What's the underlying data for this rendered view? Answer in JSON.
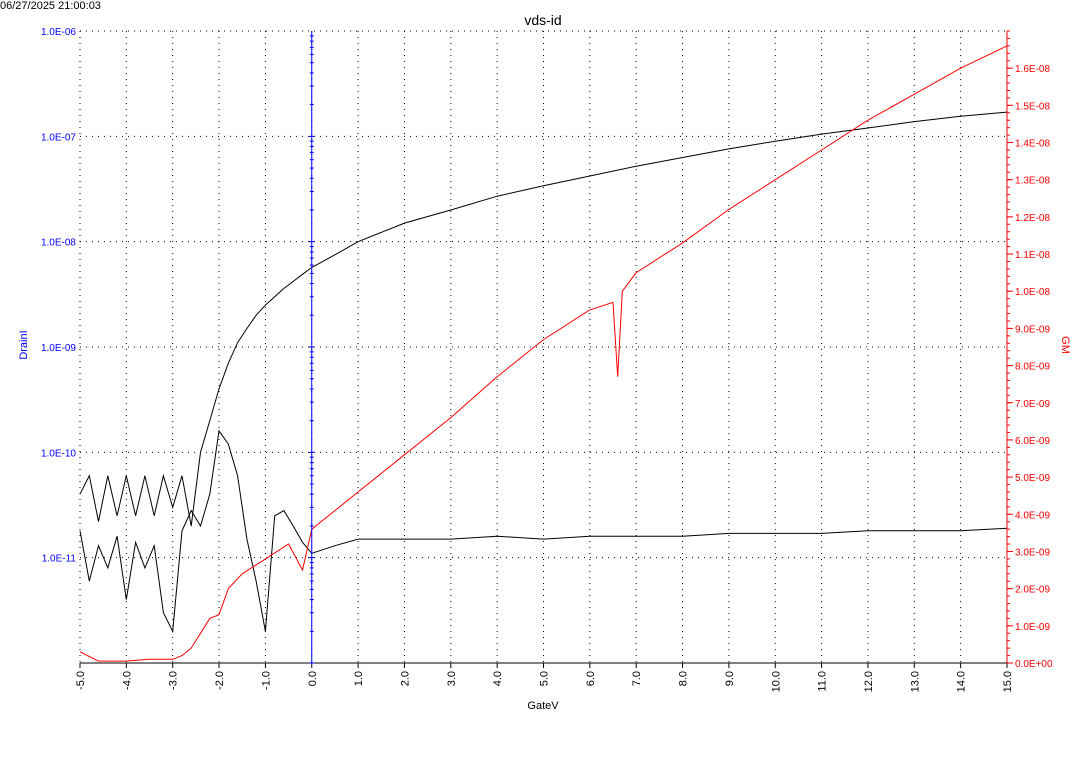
{
  "timestamp": "06/27/2025 21:00:03",
  "chart_data": {
    "type": "line",
    "title": "vds-id",
    "xlabel": "GateV",
    "ylabel_left": "DrainI",
    "ylabel_right": "GM",
    "grid": true,
    "xlim": [
      -5.0,
      15.0
    ],
    "x_ticks": [
      "-5.0",
      "-4.0",
      "-3.0",
      "-2.0",
      "-1.0",
      "0.0",
      "1.0",
      "2.0",
      "3.0",
      "4.0",
      "5.0",
      "6.0",
      "7.0",
      "8.0",
      "9.0",
      "10.0",
      "11.0",
      "12.0",
      "13.0",
      "14.0",
      "15.0"
    ],
    "y_left": {
      "scale": "log",
      "lim": [
        1e-12,
        1e-06
      ],
      "tick_labels": [
        "1.0E-06",
        "1.0E-07",
        "1.0E-08",
        "1.0E-09",
        "1.0E-10",
        "1.0E-11"
      ],
      "color": "#0000ff"
    },
    "y_right": {
      "scale": "linear",
      "lim": [
        0,
        1.7e-08
      ],
      "tick_labels": [
        "0.0E+00",
        "1.0E-09",
        "2.0E-09",
        "3.0E-09",
        "4.0E-09",
        "5.0E-09",
        "6.0E-09",
        "7.0E-09",
        "8.0E-09",
        "9.0E-09",
        "1.0E-08",
        "1.1E-08",
        "1.2E-08",
        "1.3E-08",
        "1.4E-08",
        "1.5E-08",
        "1.6E-08"
      ],
      "color": "#ff0000"
    },
    "series": [
      {
        "axis": "left",
        "color": "#000000",
        "x": [
          -5.0,
          -4.8,
          -4.6,
          -4.4,
          -4.2,
          -4.0,
          -3.8,
          -3.6,
          -3.4,
          -3.2,
          -3.0,
          -2.8,
          -2.6,
          -2.4,
          -2.2,
          -2.0,
          -1.8,
          -1.6,
          -1.4,
          -1.2,
          -1.0,
          -0.8,
          -0.6,
          -0.4,
          -0.2,
          0.0,
          0.5,
          1.0,
          2.0,
          3.0,
          4.0,
          5.0,
          6.0,
          7.0,
          8.0,
          9.0,
          10.0,
          11.0,
          12.0,
          13.0,
          14.0,
          15.0
        ],
        "y": [
          4e-11,
          6e-11,
          2.2e-11,
          6e-11,
          2.5e-11,
          6e-11,
          2.5e-11,
          6e-11,
          2.5e-11,
          6e-11,
          3e-11,
          6e-11,
          2e-11,
          1e-10,
          2e-10,
          4e-10,
          7e-10,
          1.1e-09,
          1.5e-09,
          2e-09,
          2.5e-09,
          3e-09,
          3.6e-09,
          4.2e-09,
          4.9e-09,
          5.7e-09,
          7.5e-09,
          1e-08,
          1.5e-08,
          2e-08,
          2.7e-08,
          3.4e-08,
          4.2e-08,
          5.2e-08,
          6.3e-08,
          7.6e-08,
          9e-08,
          1.05e-07,
          1.2e-07,
          1.38e-07,
          1.55e-07,
          1.7e-07
        ]
      },
      {
        "axis": "left",
        "color": "#000000",
        "x": [
          -5.0,
          -4.8,
          -4.6,
          -4.4,
          -4.2,
          -4.0,
          -3.8,
          -3.6,
          -3.4,
          -3.2,
          -3.0,
          -2.8,
          -2.6,
          -2.4,
          -2.2,
          -2.1,
          -2.0,
          -1.8,
          -1.6,
          -1.4,
          -1.2,
          -1.0,
          -0.8,
          -0.6,
          -0.4,
          -0.2,
          0.0,
          0.5,
          1.0,
          2.0,
          3.0,
          4.0,
          5.0,
          6.0,
          7.0,
          8.0,
          9.0,
          10.0,
          11.0,
          12.0,
          13.0,
          14.0,
          15.0
        ],
        "y": [
          1.8e-11,
          6e-12,
          1.3e-11,
          8e-12,
          1.6e-11,
          4e-12,
          1.4e-11,
          8e-12,
          1.3e-11,
          3e-12,
          2e-12,
          1.8e-11,
          2.8e-11,
          2e-11,
          4e-11,
          8e-11,
          1.6e-10,
          1.2e-10,
          6e-11,
          1.5e-11,
          6e-12,
          2e-12,
          2.5e-11,
          2.8e-11,
          2e-11,
          1.4e-11,
          1.1e-11,
          1.3e-11,
          1.5e-11,
          1.5e-11,
          1.5e-11,
          1.6e-11,
          1.5e-11,
          1.6e-11,
          1.6e-11,
          1.6e-11,
          1.7e-11,
          1.7e-11,
          1.7e-11,
          1.8e-11,
          1.8e-11,
          1.8e-11,
          1.9e-11
        ]
      },
      {
        "axis": "right",
        "color": "#ff0000",
        "x": [
          -5.0,
          -4.6,
          -4.0,
          -3.5,
          -3.0,
          -2.8,
          -2.6,
          -2.4,
          -2.2,
          -2.0,
          -1.8,
          -1.5,
          -1.0,
          -0.5,
          -0.2,
          0.0,
          0.5,
          1.0,
          2.0,
          3.0,
          4.0,
          5.0,
          6.0,
          6.5,
          6.6,
          6.7,
          7.0,
          8.0,
          9.0,
          10.0,
          11.0,
          12.0,
          13.0,
          14.0,
          15.0
        ],
        "y": [
          3e-10,
          5e-11,
          5e-11,
          1e-10,
          1e-10,
          2e-10,
          4e-10,
          8e-10,
          1.2e-09,
          1.3e-09,
          2e-09,
          2.4e-09,
          2.8e-09,
          3.2e-09,
          2.5e-09,
          3.6e-09,
          4.1e-09,
          4.6e-09,
          5.6e-09,
          6.6e-09,
          7.7e-09,
          8.7e-09,
          9.5e-09,
          9.7e-09,
          7.7e-09,
          1e-08,
          1.05e-08,
          1.13e-08,
          1.22e-08,
          1.3e-08,
          1.38e-08,
          1.46e-08,
          1.53e-08,
          1.6e-08,
          1.66e-08
        ]
      }
    ]
  }
}
